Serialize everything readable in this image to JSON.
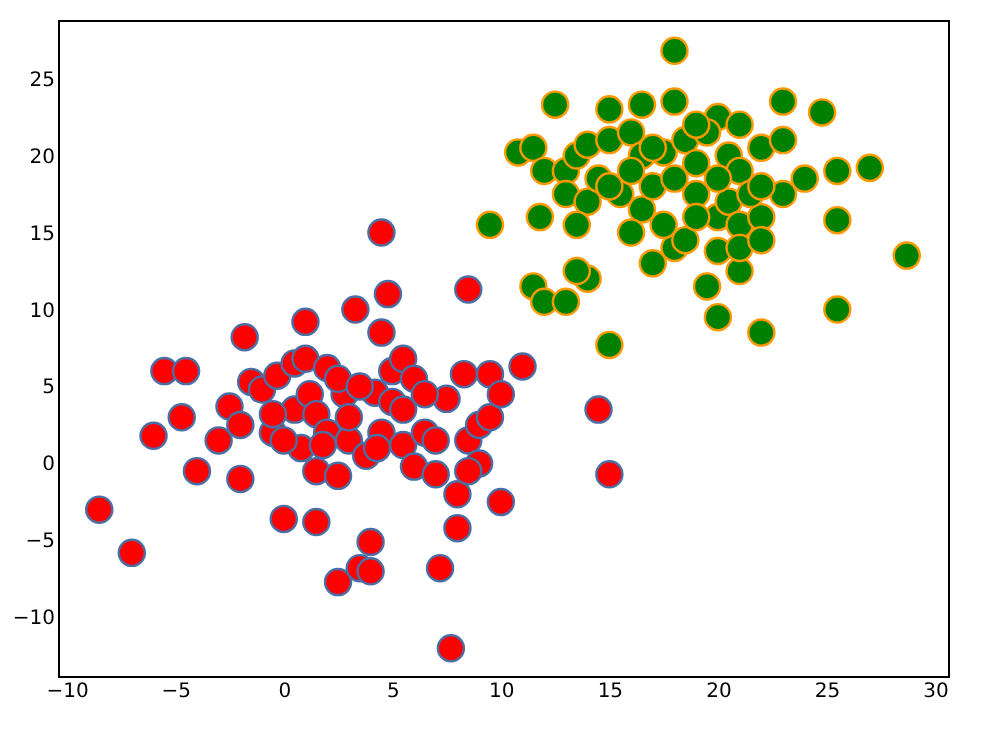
{
  "chart_data": {
    "type": "scatter",
    "marker": "circle",
    "grid": false,
    "xlim": [
      -10.4,
      30.6
    ],
    "ylim": [
      -13.8,
      28.8
    ],
    "xticks": [
      -10,
      -5,
      0,
      5,
      10,
      15,
      20,
      25,
      30
    ],
    "yticks": [
      -10,
      -5,
      0,
      5,
      10,
      15,
      20,
      25
    ],
    "series": [
      {
        "color": "#ff0000",
        "x": [
          -8.5,
          -7,
          -6,
          -5.5,
          -4.5,
          -4.7,
          -4,
          -3,
          -2.5,
          -2,
          -2,
          -1.8,
          -1.5,
          -1,
          -0.5,
          -0.3,
          0,
          0.5,
          0.5,
          1,
          1,
          1.2,
          1.5,
          1.5,
          1.5,
          2,
          2,
          2.5,
          2.5,
          2.8,
          3,
          3.3,
          3.5,
          3.8,
          4,
          4,
          4.2,
          4.5,
          4.5,
          4.8,
          4.5,
          5,
          5,
          5.5,
          5.5,
          6,
          6,
          6.5,
          7,
          7.2,
          7.5,
          7.7,
          8,
          8,
          8.3,
          8.5,
          8.5,
          9,
          9,
          9.5,
          9.5,
          10,
          10,
          11,
          14.5,
          15,
          4.3,
          3,
          0.8,
          5.5,
          6.5,
          -0.5,
          2.5,
          7,
          8.5,
          3.5,
          1.8,
          0
        ],
        "values": [
          -3,
          -5.8,
          1.8,
          6,
          6,
          3,
          -0.5,
          1.5,
          3.7,
          -1,
          2.5,
          8.2,
          5.3,
          4.8,
          2,
          5.7,
          -3.6,
          6.5,
          3.5,
          9.2,
          6.8,
          4.5,
          -0.5,
          -3.8,
          3.2,
          2,
          6.2,
          -7.7,
          -0.8,
          4.5,
          1.5,
          10,
          -6.8,
          0.5,
          -7,
          -5.1,
          4.6,
          15,
          8.5,
          11,
          2,
          4,
          6,
          1.2,
          6.8,
          5.5,
          -0.2,
          2,
          -0.7,
          -6.8,
          4.2,
          -12,
          -2,
          -4.2,
          5.8,
          11.3,
          1.5,
          0,
          2.5,
          5.8,
          3,
          -2.5,
          4.5,
          6.3,
          3.5,
          -0.7,
          1,
          3,
          1,
          3.5,
          4.5,
          3.2,
          5.5,
          1.5,
          -0.5,
          5,
          1.2,
          1.5
        ]
      },
      {
        "color": "#008000",
        "x": [
          18,
          12.5,
          15,
          16.5,
          18,
          20,
          21,
          23,
          24.8,
          10.8,
          11.5,
          12,
          13,
          13.5,
          14,
          15,
          16,
          16.5,
          17.5,
          18.5,
          19.5,
          20.5,
          21,
          22,
          23,
          24,
          25.5,
          27,
          9.5,
          11.8,
          13,
          14,
          14.5,
          15.5,
          16.5,
          17,
          18,
          19,
          20,
          20.5,
          21,
          22,
          23,
          25.5,
          28.7,
          11.5,
          12,
          13,
          14,
          13.5,
          15,
          17,
          18,
          19.5,
          20,
          21,
          22,
          25.5,
          16,
          17.5,
          18.5,
          19,
          20,
          21,
          22,
          15,
          16,
          19,
          20,
          21.5,
          13.5,
          17,
          22,
          19
        ],
        "values": [
          26.8,
          23.3,
          23,
          23.3,
          23.5,
          22.5,
          22,
          23.5,
          22.8,
          20.2,
          20.5,
          19,
          19,
          20,
          20.7,
          21,
          21.5,
          20,
          20.2,
          21,
          21.5,
          20,
          19,
          20.5,
          21,
          18.5,
          19,
          19.2,
          15.5,
          16,
          17.5,
          17,
          18.5,
          17.5,
          16.5,
          18,
          18.5,
          17.5,
          16,
          17,
          15.5,
          16,
          17.5,
          15.8,
          13.5,
          11.5,
          10.5,
          10.5,
          12,
          12.5,
          7.7,
          13,
          14,
          11.5,
          9.5,
          12.5,
          8.5,
          10,
          15,
          15.5,
          14.5,
          16,
          13.8,
          14,
          14.5,
          18,
          19,
          19.5,
          18.5,
          17.5,
          15.5,
          20.5,
          18,
          22
        ]
      }
    ]
  }
}
